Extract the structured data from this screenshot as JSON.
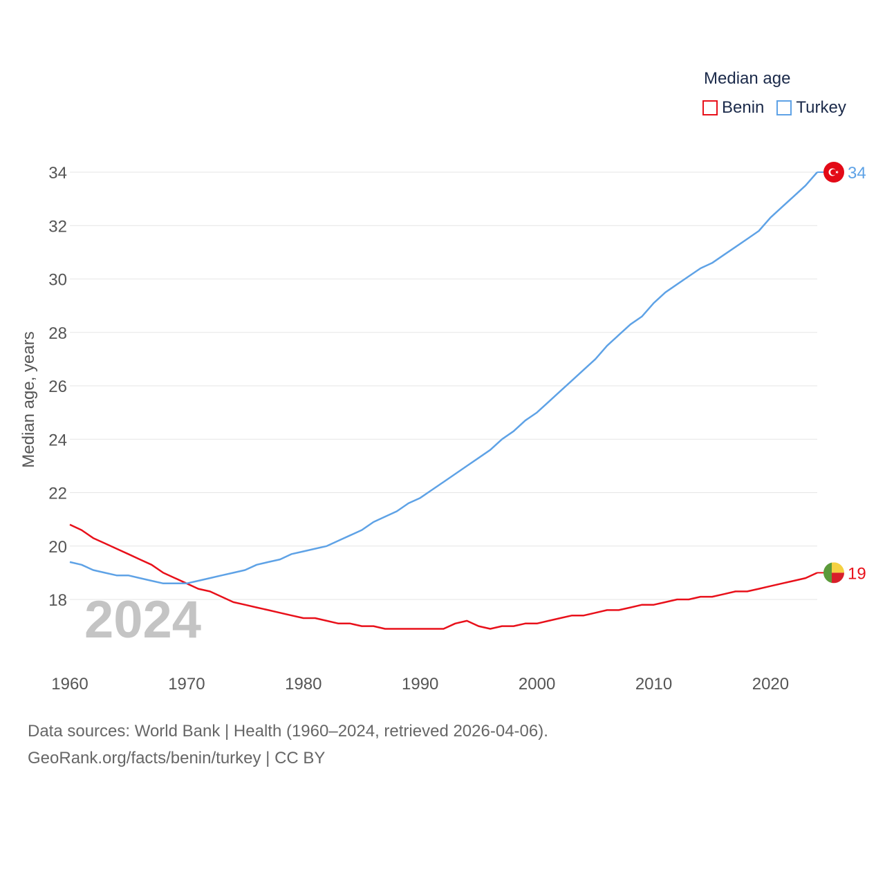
{
  "chart_data": {
    "type": "line",
    "title": "Median age",
    "xlabel": "",
    "ylabel": "Median age, years",
    "xlim": [
      1960,
      2024
    ],
    "ylim": [
      16,
      35
    ],
    "y_ticks": [
      18,
      20,
      22,
      24,
      26,
      28,
      30,
      32,
      34
    ],
    "x_ticks": [
      1960,
      1970,
      1980,
      1990,
      2000,
      2010,
      2020
    ],
    "year_label": "2024",
    "x": [
      1960,
      1961,
      1962,
      1963,
      1964,
      1965,
      1966,
      1967,
      1968,
      1969,
      1970,
      1971,
      1972,
      1973,
      1974,
      1975,
      1976,
      1977,
      1978,
      1979,
      1980,
      1981,
      1982,
      1983,
      1984,
      1985,
      1986,
      1987,
      1988,
      1989,
      1990,
      1991,
      1992,
      1993,
      1994,
      1995,
      1996,
      1997,
      1998,
      1999,
      2000,
      2001,
      2002,
      2003,
      2004,
      2005,
      2006,
      2007,
      2008,
      2009,
      2010,
      2011,
      2012,
      2013,
      2014,
      2015,
      2016,
      2017,
      2018,
      2019,
      2020,
      2021,
      2022,
      2023,
      2024
    ],
    "series": [
      {
        "name": "Benin",
        "color": "#e8101a",
        "end_label": "19",
        "values": [
          20.8,
          20.6,
          20.3,
          20.1,
          19.9,
          19.7,
          19.5,
          19.3,
          19.0,
          18.8,
          18.6,
          18.4,
          18.3,
          18.1,
          17.9,
          17.8,
          17.7,
          17.6,
          17.5,
          17.4,
          17.3,
          17.3,
          17.2,
          17.1,
          17.1,
          17.0,
          17.0,
          16.9,
          16.9,
          16.9,
          16.9,
          16.9,
          16.9,
          17.1,
          17.2,
          17.0,
          16.9,
          17.0,
          17.0,
          17.1,
          17.1,
          17.2,
          17.3,
          17.4,
          17.4,
          17.5,
          17.6,
          17.6,
          17.7,
          17.8,
          17.8,
          17.9,
          18.0,
          18.0,
          18.1,
          18.1,
          18.2,
          18.3,
          18.3,
          18.4,
          18.5,
          18.6,
          18.7,
          18.8,
          19.0
        ]
      },
      {
        "name": "Turkey",
        "color": "#5ea2e6",
        "end_label": "34",
        "values": [
          19.4,
          19.3,
          19.1,
          19.0,
          18.9,
          18.9,
          18.8,
          18.7,
          18.6,
          18.6,
          18.6,
          18.7,
          18.8,
          18.9,
          19.0,
          19.1,
          19.3,
          19.4,
          19.5,
          19.7,
          19.8,
          19.9,
          20.0,
          20.2,
          20.4,
          20.6,
          20.9,
          21.1,
          21.3,
          21.6,
          21.8,
          22.1,
          22.4,
          22.7,
          23.0,
          23.3,
          23.6,
          24.0,
          24.3,
          24.7,
          25.0,
          25.4,
          25.8,
          26.2,
          26.6,
          27.0,
          27.5,
          27.9,
          28.3,
          28.6,
          29.1,
          29.5,
          29.8,
          30.1,
          30.4,
          30.6,
          30.9,
          31.2,
          31.5,
          31.8,
          32.3,
          32.7,
          33.1,
          33.5,
          34.0
        ]
      }
    ],
    "legend": {
      "title": "Median age",
      "placement": "top-right"
    }
  },
  "footer": {
    "sources": "Data sources: World Bank | Health (1960–2024, retrieved 2026-04-06).",
    "credit": "GeoRank.org/facts/benin/turkey | CC BY"
  }
}
